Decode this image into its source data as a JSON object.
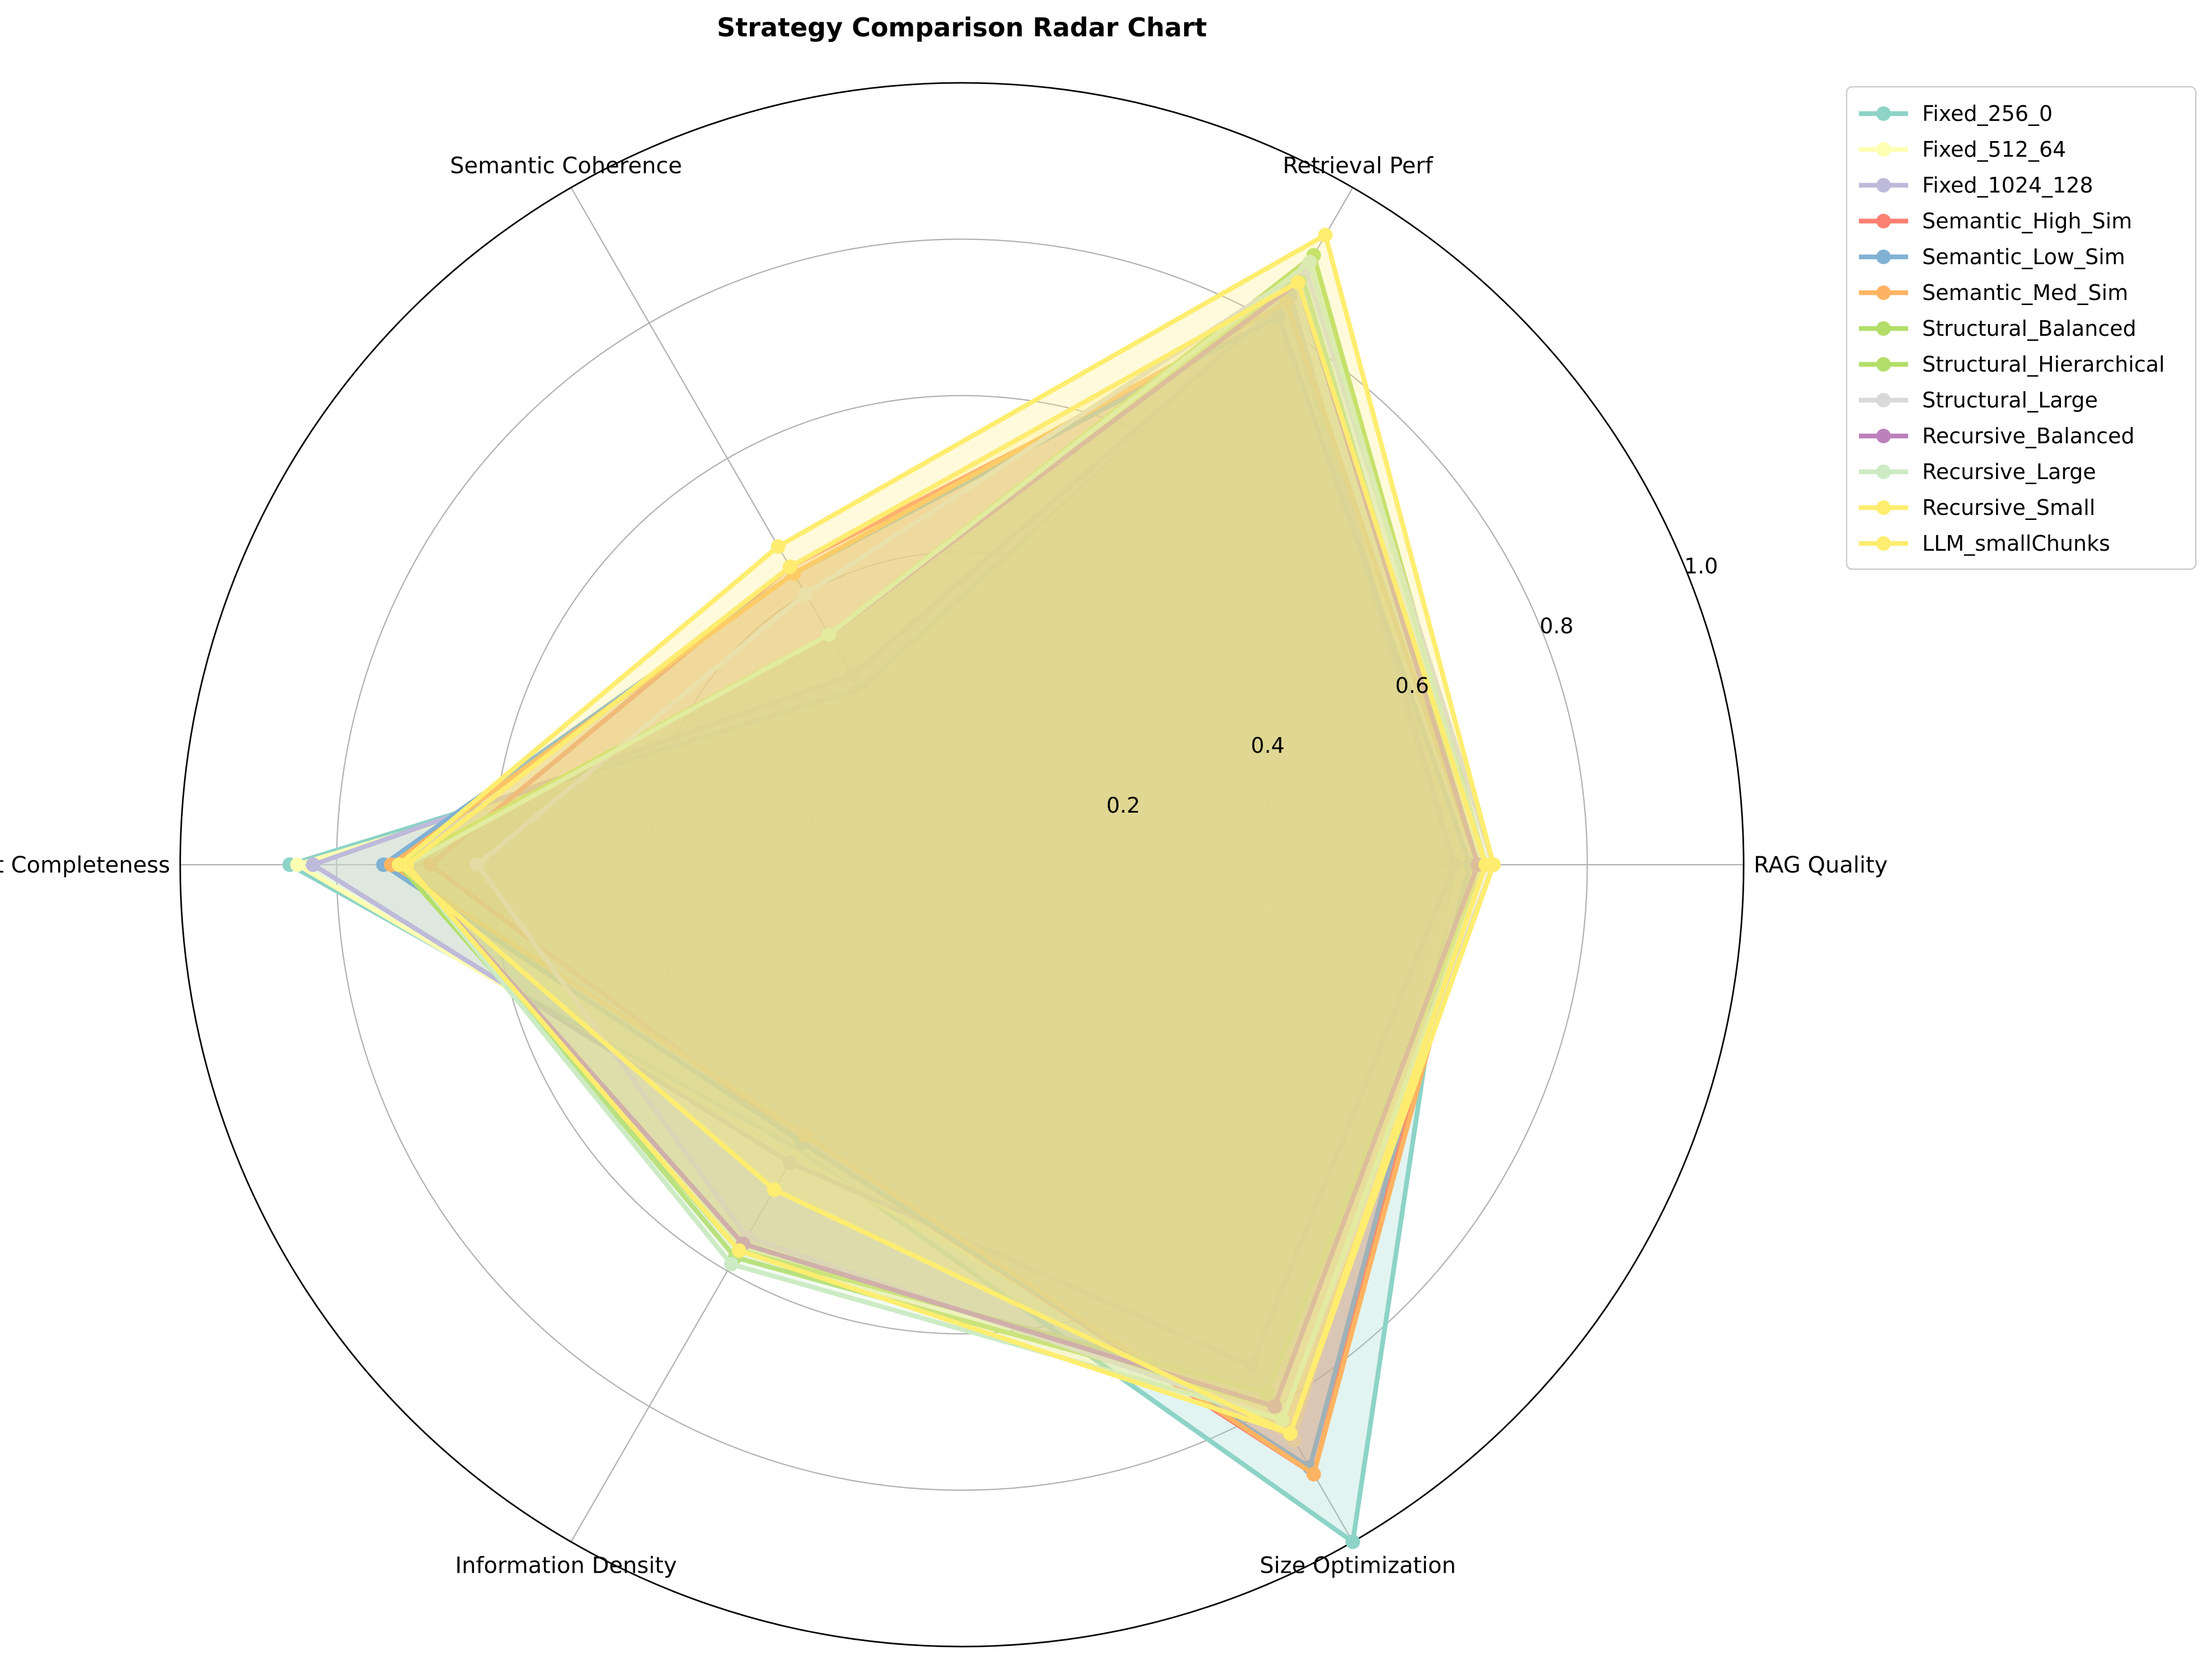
{
  "chart_data": {
    "type": "radar",
    "title": "Strategy Comparison Radar Chart",
    "axes": [
      "RAG Quality",
      "Retrieval Perf",
      "Semantic Coherence",
      "Context Completeness",
      "Information Density",
      "Size Optimization"
    ],
    "rlim": [
      0,
      1.0
    ],
    "rticks": [
      0.2,
      0.4,
      0.6,
      0.8,
      1.0
    ],
    "rtick_labels": [
      "0.2",
      "0.4",
      "0.6",
      "0.8",
      "1.0"
    ],
    "grid": true,
    "legend_position": "upper right, outside plot",
    "series": [
      {
        "name": "Fixed_256_0",
        "color": "#8dd3c7",
        "values": [
          0.63,
          0.83,
          0.26,
          0.86,
          0.42,
          1.0
        ]
      },
      {
        "name": "Fixed_512_64",
        "color": "#ffffb3",
        "values": [
          0.64,
          0.84,
          0.25,
          0.85,
          0.43,
          0.85
        ]
      },
      {
        "name": "Fixed_1024_128",
        "color": "#bebada",
        "values": [
          0.63,
          0.84,
          0.28,
          0.83,
          0.44,
          0.74
        ]
      },
      {
        "name": "Semantic_High_Sim",
        "color": "#fb8072",
        "values": [
          0.65,
          0.81,
          0.44,
          0.68,
          0.41,
          0.9
        ]
      },
      {
        "name": "Semantic_Low_Sim",
        "color": "#80b1d3",
        "values": [
          0.65,
          0.81,
          0.43,
          0.74,
          0.41,
          0.89
        ]
      },
      {
        "name": "Semantic_Med_Sim",
        "color": "#fdb462",
        "values": [
          0.66,
          0.83,
          0.43,
          0.73,
          0.4,
          0.9
        ]
      },
      {
        "name": "Structural_Balanced",
        "color": "#b3de69",
        "values": [
          0.67,
          0.9,
          0.34,
          0.72,
          0.57,
          0.78
        ]
      },
      {
        "name": "Structural_Hierarchical",
        "color": "#b3de69",
        "values": [
          0.66,
          0.87,
          0.34,
          0.71,
          0.58,
          0.8
        ]
      },
      {
        "name": "Structural_Large",
        "color": "#d9d9d9",
        "values": [
          0.68,
          0.88,
          0.4,
          0.62,
          0.55,
          0.82
        ]
      },
      {
        "name": "Recursive_Balanced",
        "color": "#bc80bd",
        "values": [
          0.66,
          0.86,
          0.34,
          0.71,
          0.56,
          0.8
        ]
      },
      {
        "name": "Recursive_Large",
        "color": "#ccebc5",
        "values": [
          0.67,
          0.89,
          0.34,
          0.71,
          0.59,
          0.82
        ]
      },
      {
        "name": "Recursive_Small",
        "color": "#ffed6f",
        "values": [
          0.67,
          0.86,
          0.44,
          0.71,
          0.57,
          0.84
        ]
      },
      {
        "name": "LLM_smallChunks",
        "color": "#ffed6f",
        "values": [
          0.68,
          0.93,
          0.47,
          0.72,
          0.48,
          0.84
        ]
      }
    ]
  }
}
